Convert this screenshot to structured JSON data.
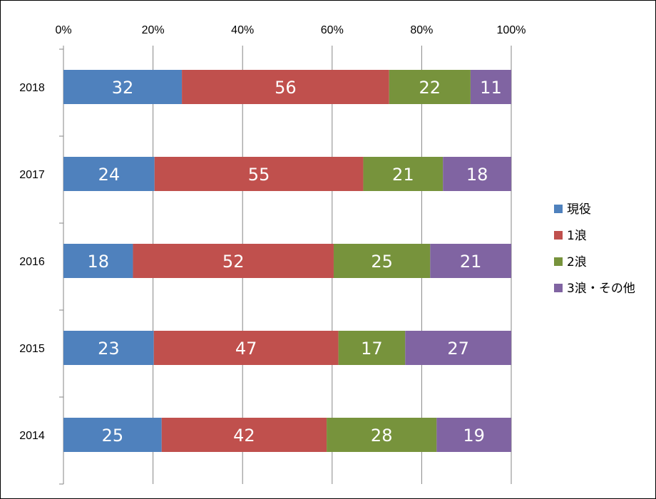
{
  "chart_data": {
    "type": "bar",
    "orientation": "horizontal",
    "stacked": "percent",
    "categories": [
      "2018",
      "2017",
      "2016",
      "2015",
      "2014"
    ],
    "series": [
      {
        "name": "現役",
        "values": [
          32,
          24,
          18,
          23,
          25
        ],
        "color": "#4F81BD"
      },
      {
        "name": "1浪",
        "values": [
          56,
          55,
          52,
          47,
          42
        ],
        "color": "#C0504D"
      },
      {
        "name": "2浪",
        "values": [
          22,
          21,
          25,
          17,
          28
        ],
        "color": "#77933C"
      },
      {
        "name": "3浪・その他",
        "values": [
          11,
          18,
          21,
          27,
          19
        ],
        "color": "#8064A2"
      }
    ],
    "x_ticks": [
      "0%",
      "20%",
      "40%",
      "60%",
      "80%",
      "100%"
    ],
    "xlim": [
      0,
      100
    ],
    "axis_position": "top",
    "grid": true,
    "legend_position": "right",
    "data_labels": true
  }
}
